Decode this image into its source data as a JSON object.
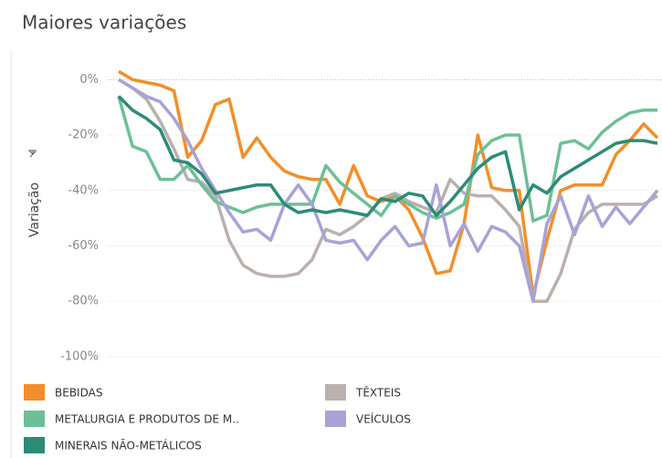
{
  "chart_data": {
    "type": "line",
    "title": "Maiores variações",
    "y_label": "Variação",
    "categories": [
      null,
      null,
      null,
      null,
      null,
      null,
      null,
      null,
      null,
      null,
      null,
      null,
      null,
      null,
      null,
      null,
      null,
      null,
      null,
      null,
      null,
      null,
      null,
      null,
      null,
      null,
      null,
      null,
      null,
      null,
      null,
      null,
      null,
      null,
      null,
      null,
      null,
      null,
      null,
      null
    ],
    "ylim": [
      -103,
      9
    ],
    "yticks": [
      {
        "value": 0,
        "label": "0%"
      },
      {
        "value": -20,
        "label": "-20%"
      },
      {
        "value": -40,
        "label": "-40%"
      },
      {
        "value": -60,
        "label": "-60%"
      },
      {
        "value": -80,
        "label": "-80%"
      },
      {
        "value": -100,
        "label": "-100%"
      }
    ],
    "series": [
      {
        "name": "BEBIDAS",
        "color": "#f28e2b",
        "values": [
          3,
          0,
          -1,
          -2,
          -4,
          -28,
          -22,
          -9,
          -7,
          -28,
          -21,
          -28,
          -33,
          -35,
          -36,
          -36,
          -45,
          -31,
          -42,
          -44,
          -42,
          -47,
          -57,
          -70,
          -69,
          -52,
          -20,
          -39,
          -40,
          -40,
          -78,
          -58,
          -40,
          -38,
          -38,
          -38,
          -27,
          -22,
          -16,
          -21
        ]
      },
      {
        "name": "TÊXTEIS",
        "color": "#bab0ac",
        "values": [
          0,
          -3,
          -7,
          -15,
          -25,
          -36,
          -37,
          -42,
          -58,
          -67,
          -70,
          -71,
          -71,
          -70,
          -65,
          -54,
          -56,
          -53,
          -49,
          -43,
          -41,
          -44,
          -46,
          -48,
          -36,
          -41,
          -42,
          -42,
          -47,
          -53,
          -80,
          -80,
          -70,
          -54,
          -48,
          -45,
          -45,
          -45,
          -45,
          -42
        ]
      },
      {
        "name": "METALURGIA E PRODUTOS DE M..",
        "color": "#6dbf97",
        "values": [
          -6,
          -24,
          -26,
          -36,
          -36,
          -31,
          -38,
          -44,
          -46,
          -48,
          -46,
          -45,
          -45,
          -45,
          -45,
          -31,
          -37,
          -41,
          -45,
          -49,
          -42,
          -45,
          -48,
          -50,
          -48,
          -45,
          -27,
          -22,
          -20,
          -20,
          -51,
          -49,
          -23,
          -22,
          -25,
          -19,
          -15,
          -12,
          -11,
          -11
        ]
      },
      {
        "name": "VEÍCULOS",
        "color": "#a8a2d6",
        "values": [
          0,
          -3,
          -6,
          -8,
          -14,
          -22,
          -32,
          -40,
          -48,
          -55,
          -54,
          -58,
          -45,
          -38,
          -45,
          -58,
          -59,
          -58,
          -65,
          -58,
          -53,
          -60,
          -59,
          -38,
          -60,
          -52,
          -62,
          -53,
          -55,
          -60,
          -80,
          -52,
          -42,
          -56,
          -42,
          -53,
          -46,
          -52,
          -46,
          -40
        ]
      },
      {
        "name": "MINERAIS NÃO-METÁLICOS",
        "color": "#2f8a78",
        "values": [
          -6,
          -11,
          -14,
          -18,
          -29,
          -30,
          -34,
          -41,
          -40,
          -39,
          -38,
          -38,
          -45,
          -48,
          -47,
          -48,
          -47,
          -48,
          -49,
          -43,
          -44,
          -41,
          -42,
          -49,
          -44,
          -38,
          -32,
          -28,
          -26,
          -47,
          -38,
          -41,
          -35,
          -32,
          -29,
          -26,
          -23,
          -22,
          -22,
          -23
        ]
      }
    ]
  }
}
